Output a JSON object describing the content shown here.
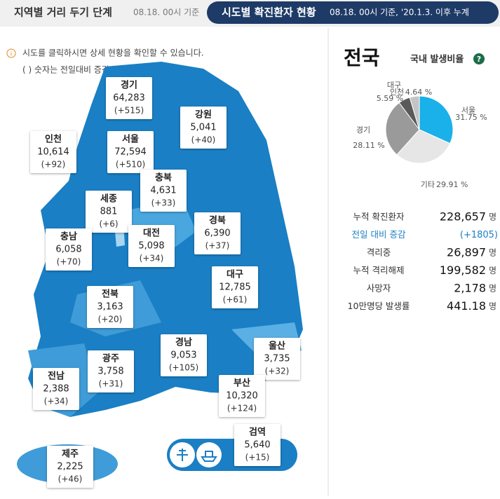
{
  "tabs": {
    "inactive": {
      "title": "지역별 거리 두기 단계",
      "note": "08.18. 00시 기준"
    },
    "active": {
      "title": "시도별 확진환자 현황",
      "note": "08.18. 00시 기준, '20.1.3. 이후 누계"
    }
  },
  "notes": [
    "시도를 클릭하시면 상세 현황을 확인할 수 있습니다.",
    "( ) 숫자는 전일대비 증감수치"
  ],
  "regions": [
    {
      "name": "경기",
      "total": "64,283",
      "change": "(+515)"
    },
    {
      "name": "강원",
      "total": "5,041",
      "change": "(+40)"
    },
    {
      "name": "인천",
      "total": "10,614",
      "change": "(+92)"
    },
    {
      "name": "서울",
      "total": "72,594",
      "change": "(+510)"
    },
    {
      "name": "충북",
      "total": "4,631",
      "change": "(+33)"
    },
    {
      "name": "세종",
      "total": "881",
      "change": "(+6)"
    },
    {
      "name": "충남",
      "total": "6,058",
      "change": "(+70)"
    },
    {
      "name": "대전",
      "total": "5,098",
      "change": "(+34)"
    },
    {
      "name": "경북",
      "total": "6,390",
      "change": "(+37)"
    },
    {
      "name": "대구",
      "total": "12,785",
      "change": "(+61)"
    },
    {
      "name": "전북",
      "total": "3,163",
      "change": "(+20)"
    },
    {
      "name": "경남",
      "total": "9,053",
      "change": "(+105)"
    },
    {
      "name": "울산",
      "total": "3,735",
      "change": "(+32)"
    },
    {
      "name": "광주",
      "total": "3,758",
      "change": "(+31)"
    },
    {
      "name": "부산",
      "total": "10,320",
      "change": "(+124)"
    },
    {
      "name": "전남",
      "total": "2,388",
      "change": "(+34)"
    },
    {
      "name": "검역",
      "total": "5,640",
      "change": "(+15)"
    },
    {
      "name": "제주",
      "total": "2,225",
      "change": "(+46)"
    }
  ],
  "summary": {
    "title": "전국",
    "ratio_title": "국내 발생비율",
    "help": "?",
    "chart_data": {
      "type": "pie",
      "categories": [
        "서울",
        "기타",
        "경기",
        "대구",
        "인천"
      ],
      "values": [
        31.75,
        29.91,
        28.11,
        5.59,
        4.64
      ],
      "value_labels": [
        "31.75 %",
        "29.91 %",
        "28.11 %",
        "5.59 %",
        "4.64 %"
      ],
      "colors": [
        "#1ab0ea",
        "#e6e6e6",
        "#9a9a9a",
        "#5a5a5a",
        "#c4c4c4"
      ]
    },
    "stats": [
      {
        "label": "누적 확진환자",
        "value": "228,657",
        "unit": "명"
      },
      {
        "label": "전일 대비 증감",
        "value": "(+1805)"
      },
      {
        "label": "격리중",
        "value": "26,897",
        "unit": "명"
      },
      {
        "label": "누적 격리해제",
        "value": "199,582",
        "unit": "명"
      },
      {
        "label": "사망자",
        "value": "2,178",
        "unit": "명"
      },
      {
        "label": "10만명당 발생률",
        "value": "441.18",
        "unit": "명"
      }
    ]
  }
}
